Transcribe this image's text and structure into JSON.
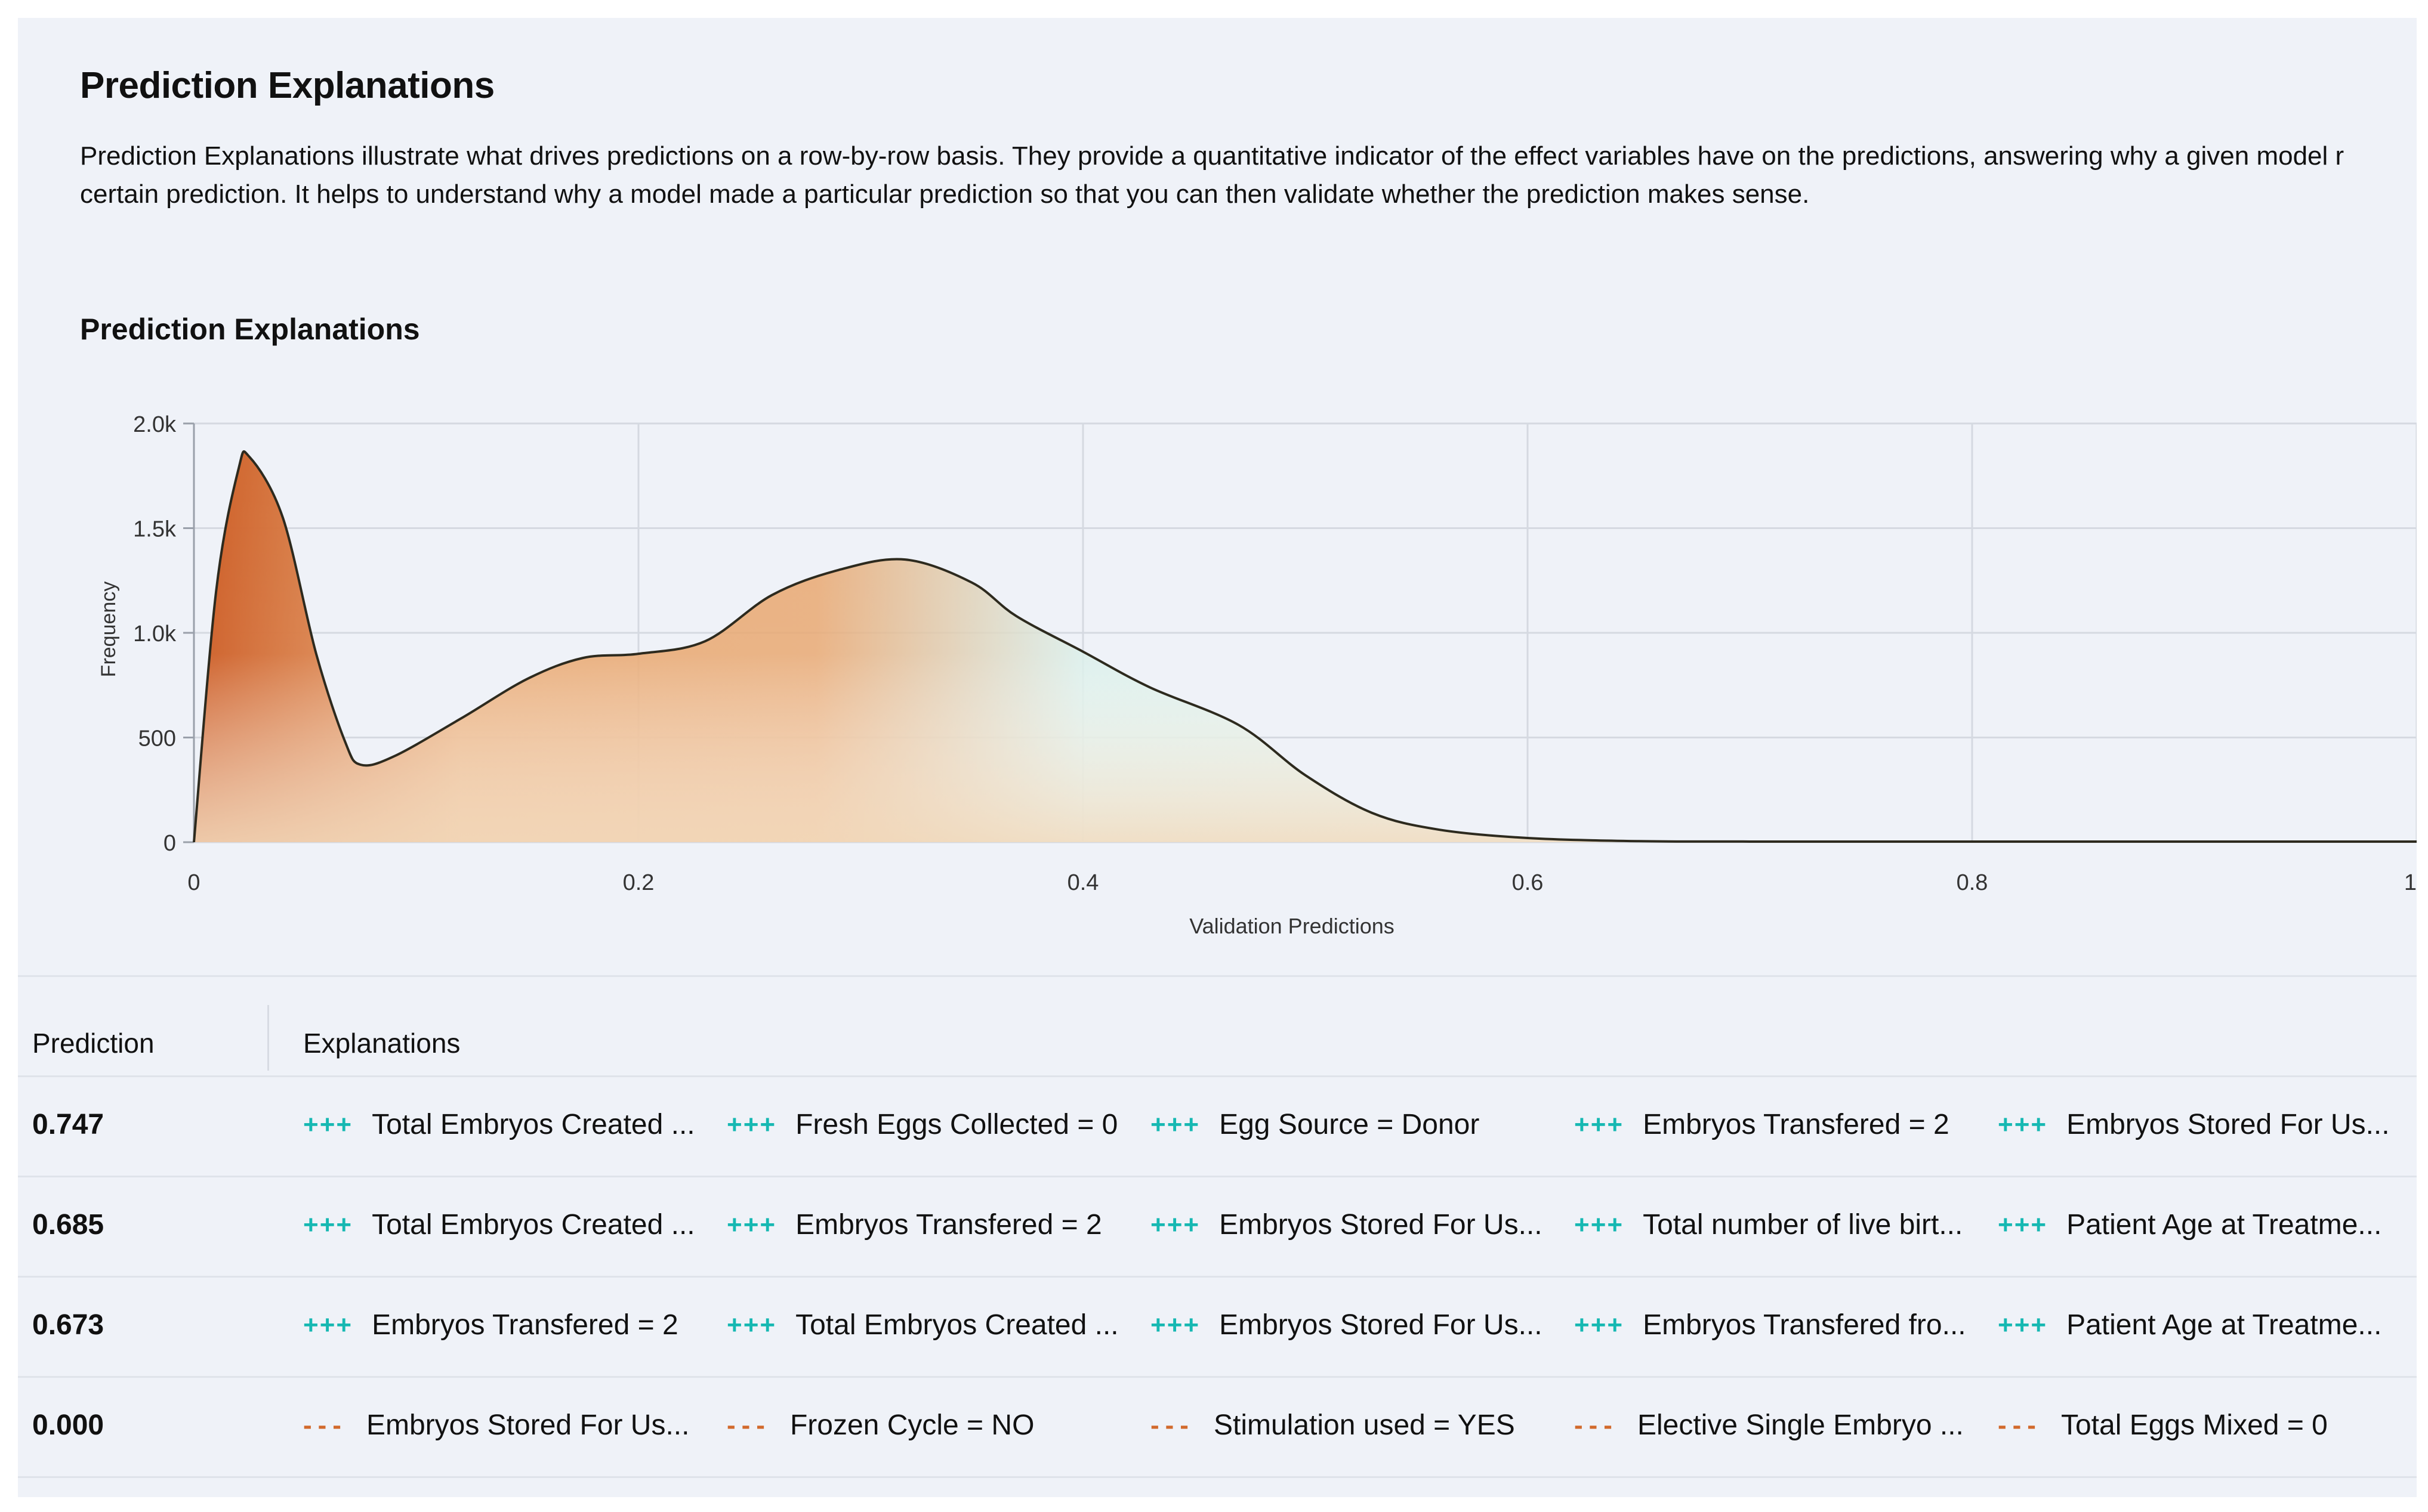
{
  "header": {
    "title": "Prediction Explanations",
    "description_line1": "Prediction Explanations illustrate what drives predictions on a row-by-row basis. They provide a quantitative indicator of the effect variables have on the predictions, answering why a given model r",
    "description_line2": "certain prediction. It helps to understand why a model made a particular prediction so that you can then validate whether the prediction makes sense."
  },
  "chart_section": {
    "title": "Prediction Explanations"
  },
  "chart_data": {
    "type": "area",
    "title": "Prediction Explanations",
    "xlabel": "Validation Predictions",
    "ylabel": "Frequency",
    "xlim": [
      0,
      1
    ],
    "ylim": [
      0,
      2000
    ],
    "x_ticks": [
      "0",
      "0.2",
      "0.4",
      "0.6",
      "0.8",
      "1"
    ],
    "y_ticks": [
      "0",
      "500",
      "1.0k",
      "1.5k",
      "2.0k"
    ],
    "x_tick_values": [
      0,
      0.2,
      0.4,
      0.6,
      0.8,
      1
    ],
    "y_tick_values": [
      0,
      500,
      1000,
      1500,
      2000
    ],
    "grid": true,
    "series": [
      {
        "name": "Frequency",
        "x": [
          0,
          0.01,
          0.02,
          0.025,
          0.04,
          0.055,
          0.068,
          0.075,
          0.09,
          0.12,
          0.15,
          0.175,
          0.2,
          0.23,
          0.26,
          0.29,
          0.32,
          0.35,
          0.37,
          0.4,
          0.43,
          0.47,
          0.5,
          0.53,
          0.56,
          0.6,
          0.65,
          0.7,
          0.8,
          0.9,
          1.0
        ],
        "values": [
          0,
          1200,
          1780,
          1840,
          1550,
          900,
          480,
          370,
          410,
          590,
          780,
          880,
          900,
          960,
          1180,
          1300,
          1350,
          1240,
          1080,
          910,
          740,
          560,
          320,
          140,
          60,
          20,
          5,
          3,
          3,
          3,
          3
        ]
      }
    ],
    "colors": {
      "peak": "#cc5a22",
      "mid": "#e8a56c",
      "light": "#f3dcc0",
      "tail": "#d8efe9",
      "line": "#2d2a1e"
    }
  },
  "table": {
    "headers": {
      "prediction": "Prediction",
      "explanations": "Explanations"
    },
    "rows": [
      {
        "prediction": "0.747",
        "explanations": [
          {
            "sign": "+++",
            "text": "Total Embryos Created ...",
            "direction": "positive"
          },
          {
            "sign": "+++",
            "text": "Fresh Eggs Collected = 0",
            "direction": "positive"
          },
          {
            "sign": "+++",
            "text": "Egg Source = Donor",
            "direction": "positive"
          },
          {
            "sign": "+++",
            "text": "Embryos Transfered = 2",
            "direction": "positive"
          },
          {
            "sign": "+++",
            "text": "Embryos Stored For Us...",
            "direction": "positive"
          }
        ]
      },
      {
        "prediction": "0.685",
        "explanations": [
          {
            "sign": "+++",
            "text": "Total Embryos Created ...",
            "direction": "positive"
          },
          {
            "sign": "+++",
            "text": "Embryos Transfered = 2",
            "direction": "positive"
          },
          {
            "sign": "+++",
            "text": "Embryos Stored For Us...",
            "direction": "positive"
          },
          {
            "sign": "+++",
            "text": "Total number of live birt...",
            "direction": "positive"
          },
          {
            "sign": "+++",
            "text": "Patient Age at Treatme...",
            "direction": "positive"
          }
        ]
      },
      {
        "prediction": "0.673",
        "explanations": [
          {
            "sign": "+++",
            "text": "Embryos Transfered = 2",
            "direction": "positive"
          },
          {
            "sign": "+++",
            "text": "Total Embryos Created ...",
            "direction": "positive"
          },
          {
            "sign": "+++",
            "text": "Embryos Stored For Us...",
            "direction": "positive"
          },
          {
            "sign": "+++",
            "text": "Embryos Transfered fro...",
            "direction": "positive"
          },
          {
            "sign": "+++",
            "text": "Patient Age at Treatme...",
            "direction": "positive"
          }
        ]
      },
      {
        "prediction": "0.000",
        "explanations": [
          {
            "sign": "---",
            "text": "Embryos Stored For Us...",
            "direction": "negative"
          },
          {
            "sign": "---",
            "text": "Frozen Cycle = NO",
            "direction": "negative"
          },
          {
            "sign": "---",
            "text": "Stimulation used = YES",
            "direction": "negative"
          },
          {
            "sign": "---",
            "text": "Elective Single Embryo ...",
            "direction": "negative"
          },
          {
            "sign": "---",
            "text": "Total Eggs Mixed = 0",
            "direction": "negative"
          }
        ]
      }
    ]
  }
}
